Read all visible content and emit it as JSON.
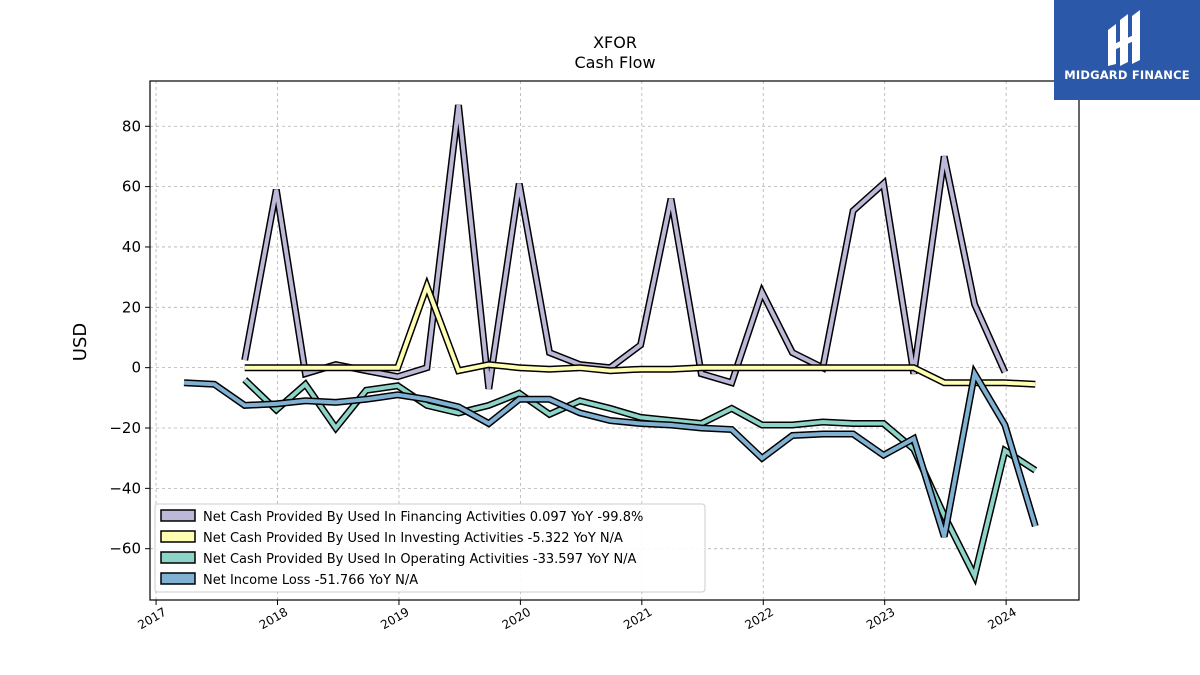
{
  "title_line1": "XFOR",
  "title_line2": "Cash Flow",
  "brand": {
    "name": "MIDGARD FINANCE",
    "color": "#2b58a8"
  },
  "chart_data": {
    "type": "line",
    "ylabel": "USD",
    "xlabel": "",
    "ylim": [
      -77,
      95
    ],
    "xlim": [
      2016.95,
      2024.6
    ],
    "yticks": [
      80,
      60,
      40,
      20,
      0,
      -20,
      -40,
      -60
    ],
    "ytick_labels": [
      "80",
      "60",
      "40",
      "20",
      "0",
      "−20",
      "−40",
      "−60"
    ],
    "xticks": [
      2017,
      2018,
      2019,
      2020,
      2021,
      2022,
      2023,
      2024
    ],
    "xtick_labels": [
      "2017",
      "2018",
      "2019",
      "2020",
      "2021",
      "2022",
      "2023",
      "2024"
    ],
    "grid": true,
    "legend_position": "lower-left",
    "series": [
      {
        "name": "Net Cash Provided By Used In Financing Activities  0.097 YoY -99.8%",
        "color": "#bcb8d8",
        "x": [
          2017.73,
          2017.99,
          2018.23,
          2018.48,
          2018.73,
          2018.99,
          2019.23,
          2019.49,
          2019.74,
          2019.99,
          2020.24,
          2020.49,
          2020.74,
          2020.99,
          2021.24,
          2021.49,
          2021.74,
          2021.99,
          2022.24,
          2022.49,
          2022.74,
          2022.99,
          2023.24,
          2023.49,
          2023.74,
          2023.99
        ],
        "values": [
          2.5,
          59,
          -2,
          1,
          -1,
          -3,
          0,
          87,
          -7,
          61,
          5,
          1,
          0,
          7.5,
          56,
          -2,
          -5,
          25,
          5,
          0,
          52,
          61,
          -2,
          70,
          21,
          -1.5
        ]
      },
      {
        "name": "Net Cash Provided By Used In Investing Activities  -5.322 YoY N/A",
        "color": "#ffffb3",
        "x": [
          2017.73,
          2017.99,
          2018.23,
          2018.48,
          2018.73,
          2018.99,
          2019.23,
          2019.49,
          2019.74,
          2019.99,
          2020.24,
          2020.49,
          2020.74,
          2020.99,
          2021.24,
          2021.49,
          2021.74,
          2021.99,
          2022.24,
          2022.49,
          2022.74,
          2022.99,
          2023.24,
          2023.49,
          2023.74,
          2023.99,
          2024.24
        ],
        "values": [
          0,
          0,
          0,
          0,
          0,
          0,
          27,
          -1,
          1,
          0,
          -0.5,
          0,
          -1,
          -0.5,
          -0.5,
          0,
          0,
          0,
          0,
          0,
          0,
          0,
          0,
          -5,
          -5,
          -5,
          -5.5
        ]
      },
      {
        "name": "Net Cash Provided By Used In Operating Activities  -33.597 YoY N/A",
        "color": "#8dd3c7",
        "x": [
          2017.73,
          2017.99,
          2018.23,
          2018.48,
          2018.73,
          2018.99,
          2019.23,
          2019.49,
          2019.74,
          2019.99,
          2020.24,
          2020.49,
          2020.74,
          2020.99,
          2021.24,
          2021.49,
          2021.74,
          2021.99,
          2022.24,
          2022.49,
          2022.74,
          2022.99,
          2023.24,
          2023.49,
          2023.74,
          2023.99,
          2024.24
        ],
        "values": [
          -4,
          -14,
          -5.5,
          -20,
          -7.5,
          -6,
          -12.5,
          -15,
          -12.5,
          -8.5,
          -15.5,
          -11,
          -13.5,
          -16.5,
          -17.5,
          -18.5,
          -13.5,
          -19,
          -19,
          -18,
          -18.5,
          -18.5,
          -27,
          -49,
          -69,
          -27.5,
          -34
        ]
      },
      {
        "name": "Net Income Loss  -51.766 YoY N/A",
        "color": "#80b1d3",
        "x": [
          2017.23,
          2017.48,
          2017.73,
          2017.99,
          2018.23,
          2018.48,
          2018.73,
          2018.99,
          2019.23,
          2019.49,
          2019.74,
          2019.99,
          2020.24,
          2020.49,
          2020.74,
          2020.99,
          2021.24,
          2021.49,
          2021.74,
          2021.99,
          2022.24,
          2022.49,
          2022.74,
          2022.99,
          2023.24,
          2023.49,
          2023.74,
          2023.99,
          2024.24
        ],
        "values": [
          -5,
          -5.5,
          -12.5,
          -12,
          -11,
          -11.5,
          -10.5,
          -9,
          -10.5,
          -13,
          -18.5,
          -10.5,
          -10.5,
          -15,
          -17.5,
          -18.5,
          -19,
          -20,
          -20.5,
          -30,
          -22.5,
          -22,
          -22,
          -29,
          -23.5,
          -56,
          -2,
          -19,
          -52.5
        ]
      }
    ]
  }
}
